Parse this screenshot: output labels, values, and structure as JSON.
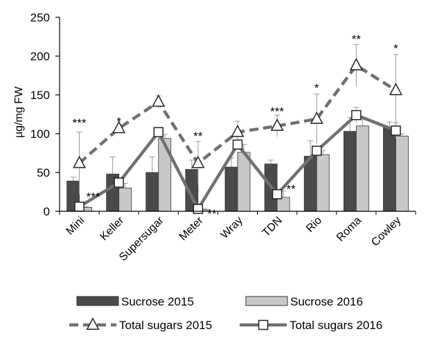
{
  "chart_data": {
    "type": "bar",
    "ylabel": "µg/mg FW",
    "ylim": [
      0,
      250
    ],
    "yticks": [
      0,
      50,
      100,
      150,
      200,
      250
    ],
    "categories": [
      "Mini",
      "Keller",
      "Supersugar",
      "Meter",
      "Wray",
      "TDN",
      "Rio",
      "Roma",
      "Cowley"
    ],
    "bar_series": [
      {
        "name": "Sucrose 2015",
        "color": "#4a4a4a",
        "values": [
          39,
          48,
          50,
          54,
          57,
          61,
          71,
          103,
          108
        ],
        "errors": [
          5,
          22,
          20,
          12,
          12,
          5,
          20,
          18,
          7
        ]
      },
      {
        "name": "Sucrose 2016",
        "color": "#c8c8c8",
        "values": [
          5,
          30,
          94,
          2,
          76,
          18,
          73,
          110,
          97
        ],
        "errors": [
          1,
          6,
          5,
          1,
          10,
          8,
          5,
          8,
          3
        ]
      }
    ],
    "line_series": [
      {
        "name": "Total sugars 2015",
        "color": "#707070",
        "dash": true,
        "marker": "triangle",
        "values": [
          62,
          107,
          141,
          62,
          102,
          110,
          119,
          188,
          156
        ],
        "errors": [
          40,
          0,
          8,
          28,
          14,
          14,
          32,
          27,
          46
        ]
      },
      {
        "name": "Total sugars 2016",
        "color": "#707070",
        "dash": false,
        "marker": "square",
        "values": [
          6,
          37,
          102,
          3,
          86,
          22,
          78,
          124,
          104
        ],
        "errors": [
          0,
          0,
          0,
          0,
          0,
          0,
          0,
          10,
          10
        ]
      }
    ],
    "annotations": [
      {
        "category": "Mini",
        "text": "***",
        "y": 116
      },
      {
        "category": "Mini",
        "text": "***",
        "y": 21
      },
      {
        "category": "Keller",
        "text": "*",
        "y": 118
      },
      {
        "category": "Meter",
        "text": "**",
        "y": 99
      },
      {
        "category": "Meter",
        "text": "**",
        "y": -1
      },
      {
        "category": "TDN",
        "text": "***",
        "y": 131
      },
      {
        "category": "TDN",
        "text": "**",
        "y": 31
      },
      {
        "category": "Rio",
        "text": "*",
        "y": 161
      },
      {
        "category": "Roma",
        "text": "**",
        "y": 224
      },
      {
        "category": "Cowley",
        "text": "*",
        "y": 212
      }
    ],
    "legend": {
      "placement": "bottom",
      "items": [
        "Sucrose 2015",
        "Sucrose 2016",
        "Total sugars 2015",
        "Total sugars 2016"
      ]
    }
  }
}
